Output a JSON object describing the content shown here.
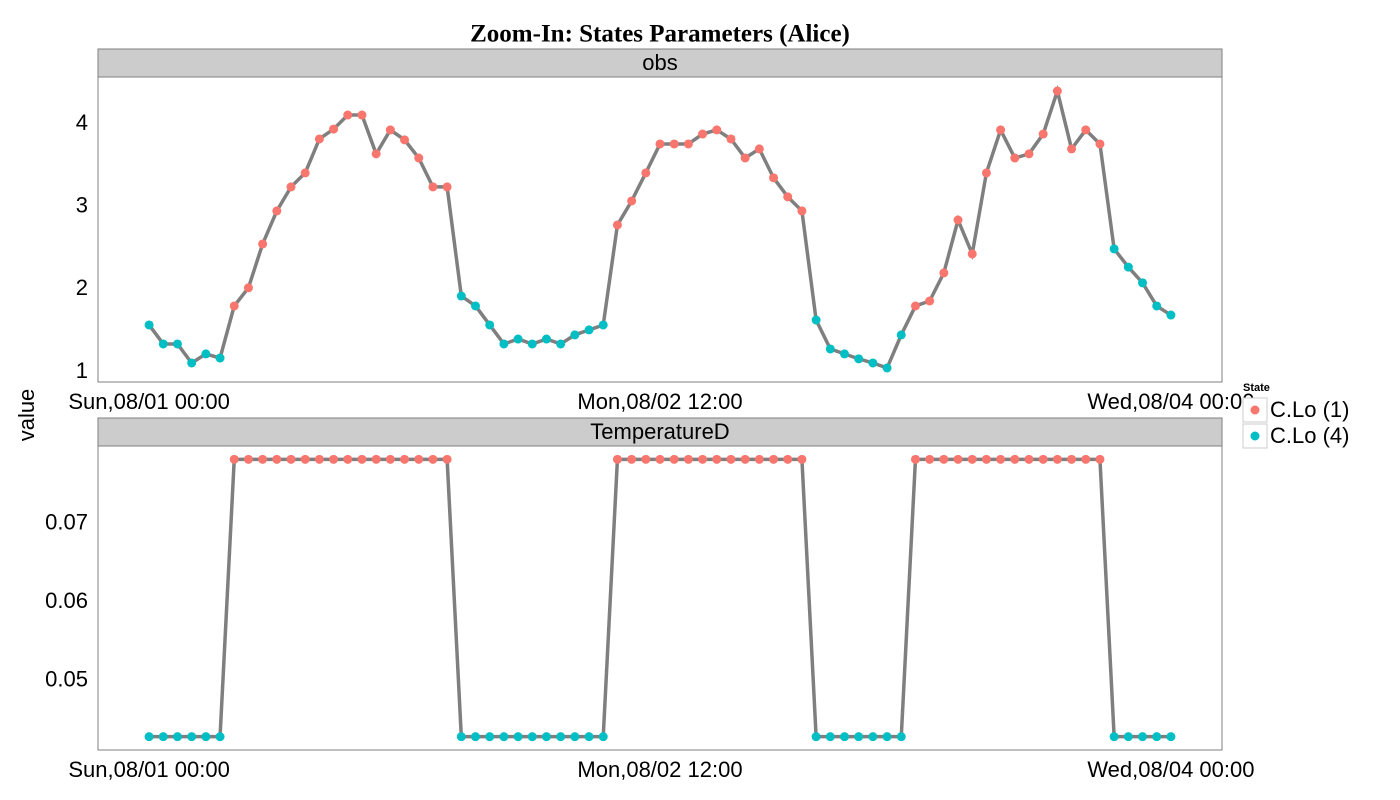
{
  "chart_data": {
    "type": "line",
    "title": "Zoom-In: States Parameters (Alice)",
    "ylabel": "value",
    "x": [
      "08/01 00:00",
      "08/01 01:00",
      "08/01 02:00",
      "08/01 03:00",
      "08/01 04:00",
      "08/01 05:00",
      "08/01 06:00",
      "08/01 07:00",
      "08/01 08:00",
      "08/01 09:00",
      "08/01 10:00",
      "08/01 11:00",
      "08/01 12:00",
      "08/01 13:00",
      "08/01 14:00",
      "08/01 15:00",
      "08/01 16:00",
      "08/01 17:00",
      "08/01 18:00",
      "08/01 19:00",
      "08/01 20:00",
      "08/01 21:00",
      "08/01 22:00",
      "08/01 23:00",
      "08/02 00:00",
      "08/02 01:00",
      "08/02 02:00",
      "08/02 03:00",
      "08/02 04:00",
      "08/02 05:00",
      "08/02 06:00",
      "08/02 07:00",
      "08/02 08:00",
      "08/02 09:00",
      "08/02 10:00",
      "08/02 11:00",
      "08/02 12:00",
      "08/02 13:00",
      "08/02 14:00",
      "08/02 15:00",
      "08/02 16:00",
      "08/02 17:00",
      "08/02 18:00",
      "08/02 19:00",
      "08/02 20:00",
      "08/02 21:00",
      "08/02 22:00",
      "08/02 23:00",
      "08/03 00:00",
      "08/03 01:00",
      "08/03 02:00",
      "08/03 03:00",
      "08/03 04:00",
      "08/03 05:00",
      "08/03 06:00",
      "08/03 07:00",
      "08/03 08:00",
      "08/03 09:00",
      "08/03 10:00",
      "08/03 11:00",
      "08/03 12:00",
      "08/03 13:00",
      "08/03 14:00",
      "08/03 15:00",
      "08/03 16:00",
      "08/03 17:00",
      "08/03 18:00",
      "08/03 19:00",
      "08/03 20:00",
      "08/03 21:00",
      "08/03 22:00",
      "08/03 23:00",
      "08/04 00:00"
    ],
    "xlim": [
      "07/31 20:24",
      "08/04 03:36"
    ],
    "xticks": [
      {
        "value": "08/01 00:00",
        "label": "Sun,08/01 00:00"
      },
      {
        "value": "08/02 12:00",
        "label": "Mon,08/02 12:00"
      },
      {
        "value": "08/04 00:00",
        "label": "Wed,08/04 00:00"
      }
    ],
    "line_color": "#7f7f7f",
    "legend": {
      "title": "State",
      "entries": [
        {
          "name": "C.Lo (1)",
          "color": "#F8766D"
        },
        {
          "name": "C.Lo (4)",
          "color": "#00BFC4"
        }
      ]
    },
    "states": [
      "C.Lo (4)",
      "C.Lo (4)",
      "C.Lo (4)",
      "C.Lo (4)",
      "C.Lo (4)",
      "C.Lo (4)",
      "C.Lo (1)",
      "C.Lo (1)",
      "C.Lo (1)",
      "C.Lo (1)",
      "C.Lo (1)",
      "C.Lo (1)",
      "C.Lo (1)",
      "C.Lo (1)",
      "C.Lo (1)",
      "C.Lo (1)",
      "C.Lo (1)",
      "C.Lo (1)",
      "C.Lo (1)",
      "C.Lo (1)",
      "C.Lo (1)",
      "C.Lo (1)",
      "C.Lo (4)",
      "C.Lo (4)",
      "C.Lo (4)",
      "C.Lo (4)",
      "C.Lo (4)",
      "C.Lo (4)",
      "C.Lo (4)",
      "C.Lo (4)",
      "C.Lo (4)",
      "C.Lo (4)",
      "C.Lo (4)",
      "C.Lo (1)",
      "C.Lo (1)",
      "C.Lo (1)",
      "C.Lo (1)",
      "C.Lo (1)",
      "C.Lo (1)",
      "C.Lo (1)",
      "C.Lo (1)",
      "C.Lo (1)",
      "C.Lo (1)",
      "C.Lo (1)",
      "C.Lo (1)",
      "C.Lo (1)",
      "C.Lo (1)",
      "C.Lo (4)",
      "C.Lo (4)",
      "C.Lo (4)",
      "C.Lo (4)",
      "C.Lo (4)",
      "C.Lo (4)",
      "C.Lo (4)",
      "C.Lo (1)",
      "C.Lo (1)",
      "C.Lo (1)",
      "C.Lo (1)",
      "C.Lo (1)",
      "C.Lo (1)",
      "C.Lo (1)",
      "C.Lo (1)",
      "C.Lo (1)",
      "C.Lo (1)",
      "C.Lo (1)",
      "C.Lo (1)",
      "C.Lo (1)",
      "C.Lo (1)",
      "C.Lo (4)",
      "C.Lo (4)",
      "C.Lo (4)",
      "C.Lo (4)",
      "C.Lo (4)"
    ],
    "panels": [
      {
        "title": "obs",
        "ylim": [
          0.88,
          4.57
        ],
        "yticks": [
          1,
          2,
          3,
          4
        ],
        "values": [
          1.57,
          1.34,
          1.34,
          1.11,
          1.22,
          1.17,
          1.8,
          2.02,
          2.55,
          2.95,
          3.24,
          3.41,
          3.82,
          3.94,
          4.11,
          4.11,
          3.64,
          3.93,
          3.81,
          3.59,
          3.24,
          3.24,
          1.92,
          1.8,
          1.57,
          1.34,
          1.4,
          1.34,
          1.4,
          1.34,
          1.45,
          1.51,
          1.57,
          2.78,
          3.07,
          3.41,
          3.76,
          3.76,
          3.76,
          3.88,
          3.93,
          3.82,
          3.59,
          3.7,
          3.35,
          3.12,
          2.95,
          1.63,
          1.28,
          1.22,
          1.16,
          1.11,
          1.05,
          1.45,
          1.8,
          1.86,
          2.2,
          2.84,
          2.43,
          3.41,
          3.93,
          3.59,
          3.64,
          3.88,
          4.4,
          3.7,
          3.93,
          3.76,
          2.49,
          2.27,
          2.08,
          1.8,
          1.69
        ]
      },
      {
        "title": "TemperatureD",
        "ylim": [
          0.0412,
          0.0799
        ],
        "yticks": [
          0.05,
          0.06,
          0.07
        ],
        "values": [
          0.0429,
          0.0429,
          0.0429,
          0.0429,
          0.0429,
          0.0429,
          0.0782,
          0.0782,
          0.0782,
          0.0782,
          0.0782,
          0.0782,
          0.0782,
          0.0782,
          0.0782,
          0.0782,
          0.0782,
          0.0782,
          0.0782,
          0.0782,
          0.0782,
          0.0782,
          0.0429,
          0.0429,
          0.0429,
          0.0429,
          0.0429,
          0.0429,
          0.0429,
          0.0429,
          0.0429,
          0.0429,
          0.0429,
          0.0782,
          0.0782,
          0.0782,
          0.0782,
          0.0782,
          0.0782,
          0.0782,
          0.0782,
          0.0782,
          0.0782,
          0.0782,
          0.0782,
          0.0782,
          0.0782,
          0.0429,
          0.0429,
          0.0429,
          0.0429,
          0.0429,
          0.0429,
          0.0429,
          0.0782,
          0.0782,
          0.0782,
          0.0782,
          0.0782,
          0.0782,
          0.0782,
          0.0782,
          0.0782,
          0.0782,
          0.0782,
          0.0782,
          0.0782,
          0.0782,
          0.0429,
          0.0429,
          0.0429,
          0.0429,
          0.0429
        ]
      }
    ]
  }
}
